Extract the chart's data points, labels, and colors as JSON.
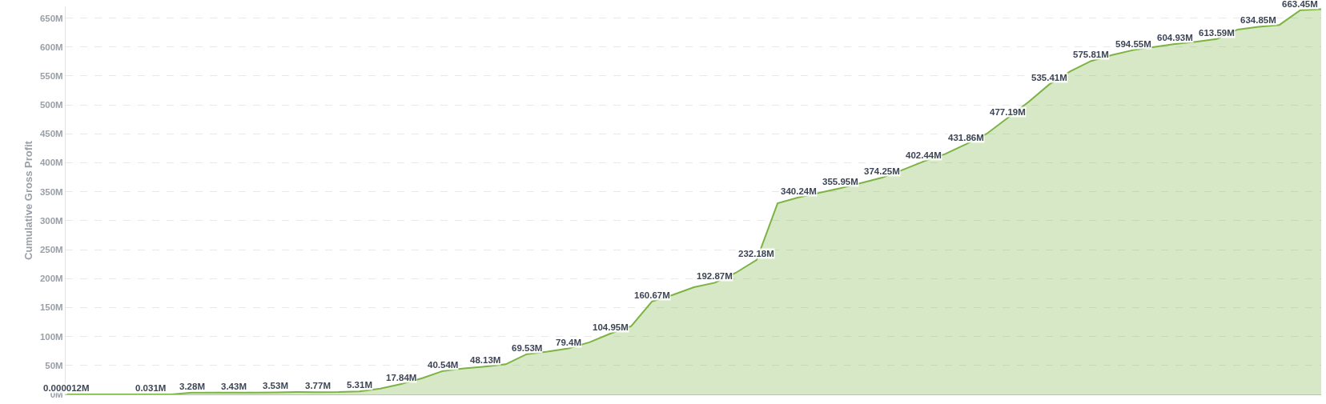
{
  "chart_data": {
    "type": "area",
    "ylabel": "Cumulative Gross Profit",
    "color": "#7cb342",
    "categories": [
      null,
      null,
      null,
      null,
      null,
      null,
      null,
      null,
      null,
      null,
      null,
      null,
      null,
      null,
      null,
      null,
      null,
      null,
      null,
      null,
      null,
      null,
      null,
      null,
      null,
      null,
      null,
      null,
      null,
      null,
      null,
      null,
      null,
      null,
      null,
      null,
      null,
      null,
      null,
      null,
      null,
      null,
      null,
      null,
      null,
      null,
      null,
      null,
      null,
      null,
      null,
      null,
      null,
      null,
      null,
      null,
      null,
      null,
      null,
      null,
      null
    ],
    "values": [
      1.2e-05,
      0,
      0,
      0,
      0.031,
      0.031,
      3.28,
      3,
      3.43,
      3,
      3.53,
      4,
      3.77,
      4,
      5.31,
      10,
      17.84,
      28,
      40.54,
      45,
      48.13,
      52,
      69.53,
      74,
      79.4,
      90,
      104.95,
      118,
      160.67,
      172,
      185,
      192.87,
      210,
      232.18,
      330,
      340.24,
      348,
      355.95,
      365,
      374.25,
      388,
      402.44,
      415,
      431.86,
      450,
      477.19,
      505,
      535.41,
      558,
      575.81,
      586,
      594.55,
      600,
      604.93,
      609,
      613.59,
      630,
      634.85,
      638,
      663.45,
      665
    ],
    "value_labels": [
      "0.000012M",
      null,
      null,
      null,
      "0.031M",
      null,
      "3.28M",
      null,
      "3.43M",
      null,
      "3.53M",
      null,
      "3.77M",
      null,
      "5.31M",
      null,
      "17.84M",
      null,
      "40.54M",
      null,
      "48.13M",
      null,
      "69.53M",
      null,
      "79.4M",
      null,
      "104.95M",
      null,
      "160.67M",
      null,
      null,
      "192.87M",
      null,
      "232.18M",
      null,
      "340.24M",
      null,
      "355.95M",
      null,
      "374.25M",
      null,
      "402.44M",
      null,
      "431.86M",
      null,
      "477.19M",
      null,
      "535.41M",
      null,
      "575.81M",
      null,
      "594.55M",
      null,
      "604.93M",
      null,
      "613.59M",
      null,
      "634.85M",
      null,
      "663.45M",
      null
    ],
    "ylim": [
      0,
      670
    ],
    "yticks": [
      {
        "value": 0,
        "label": "0M"
      },
      {
        "value": 50,
        "label": "50M"
      },
      {
        "value": 100,
        "label": "100M"
      },
      {
        "value": 150,
        "label": "150M"
      },
      {
        "value": 200,
        "label": "200M"
      },
      {
        "value": 250,
        "label": "250M"
      },
      {
        "value": 300,
        "label": "300M"
      },
      {
        "value": 350,
        "label": "350M"
      },
      {
        "value": 400,
        "label": "400M"
      },
      {
        "value": 450,
        "label": "450M"
      },
      {
        "value": 500,
        "label": "500M"
      },
      {
        "value": 550,
        "label": "550M"
      },
      {
        "value": 600,
        "label": "600M"
      },
      {
        "value": 650,
        "label": "650M"
      }
    ],
    "grid": "y"
  }
}
